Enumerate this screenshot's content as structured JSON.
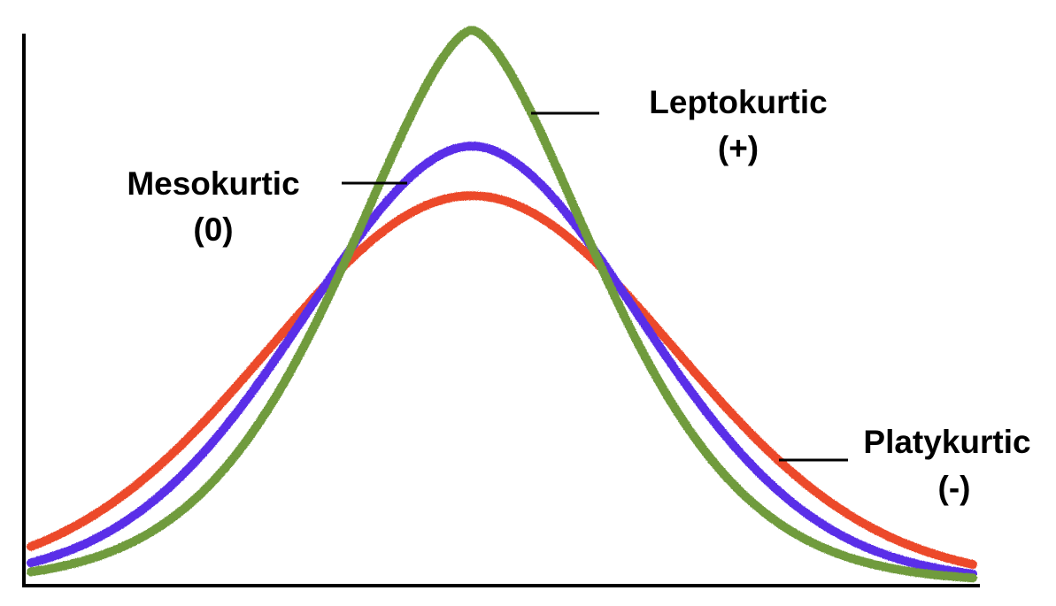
{
  "labels": {
    "leptokurtic": {
      "name": "Leptokurtic",
      "sign": "(+)"
    },
    "mesokurtic": {
      "name": "Mesokurtic",
      "sign": "(0)"
    },
    "platykurtic": {
      "name": "Platykurtic",
      "sign": "(-)"
    }
  },
  "colors": {
    "leptokurtic": "#6f9b3c",
    "mesokurtic": "#5a2ee8",
    "platykurtic": "#ec4a2c",
    "axis": "#000000",
    "leader": "#000000"
  },
  "curves": {
    "leptokurtic": {
      "peak_height": 1.0,
      "shape": "narrow"
    },
    "mesokurtic": {
      "peak_height": 0.79,
      "shape": "normal"
    },
    "platykurtic": {
      "peak_height": 0.7,
      "shape": "flat"
    }
  }
}
